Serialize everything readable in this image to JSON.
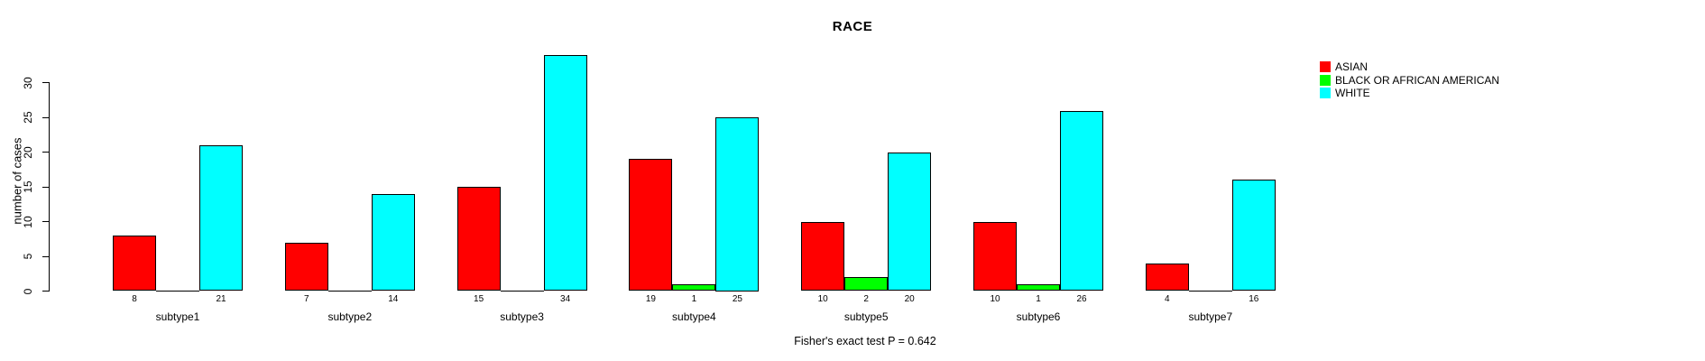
{
  "title": "RACE",
  "ylabel": "number of cases",
  "footer": "Fisher's exact test P = 0.642",
  "colors": {
    "asian": "#ff0000",
    "black_or_african_american": "#00ff00",
    "white": "#00ffff",
    "axis": "#000000",
    "background": "#ffffff"
  },
  "legend": {
    "position": "top-right",
    "items": [
      {
        "label": "ASIAN",
        "color": "#ff0000"
      },
      {
        "label": "BLACK OR AFRICAN AMERICAN",
        "color": "#00ff00"
      },
      {
        "label": "WHITE",
        "color": "#00ffff"
      }
    ]
  },
  "chart_data": {
    "type": "bar",
    "title": "RACE",
    "xlabel": "",
    "ylabel": "number of cases",
    "ylim": [
      0,
      34
    ],
    "yticks": [
      0,
      5,
      10,
      15,
      20,
      25,
      30
    ],
    "grid": false,
    "legend_position": "top-right",
    "categories": [
      "subtype1",
      "subtype2",
      "subtype3",
      "subtype4",
      "subtype5",
      "subtype6",
      "subtype7"
    ],
    "series": [
      {
        "name": "ASIAN",
        "color": "#ff0000",
        "values": [
          8,
          7,
          15,
          19,
          10,
          10,
          4
        ]
      },
      {
        "name": "BLACK OR AFRICAN AMERICAN",
        "color": "#00ff00",
        "values": [
          0,
          0,
          0,
          1,
          2,
          1,
          0
        ]
      },
      {
        "name": "WHITE",
        "color": "#00ffff",
        "values": [
          21,
          14,
          34,
          25,
          20,
          26,
          16
        ]
      }
    ],
    "bar_value_labels_shown_when": "value > 0",
    "annotation": "Fisher's exact test P = 0.642"
  }
}
